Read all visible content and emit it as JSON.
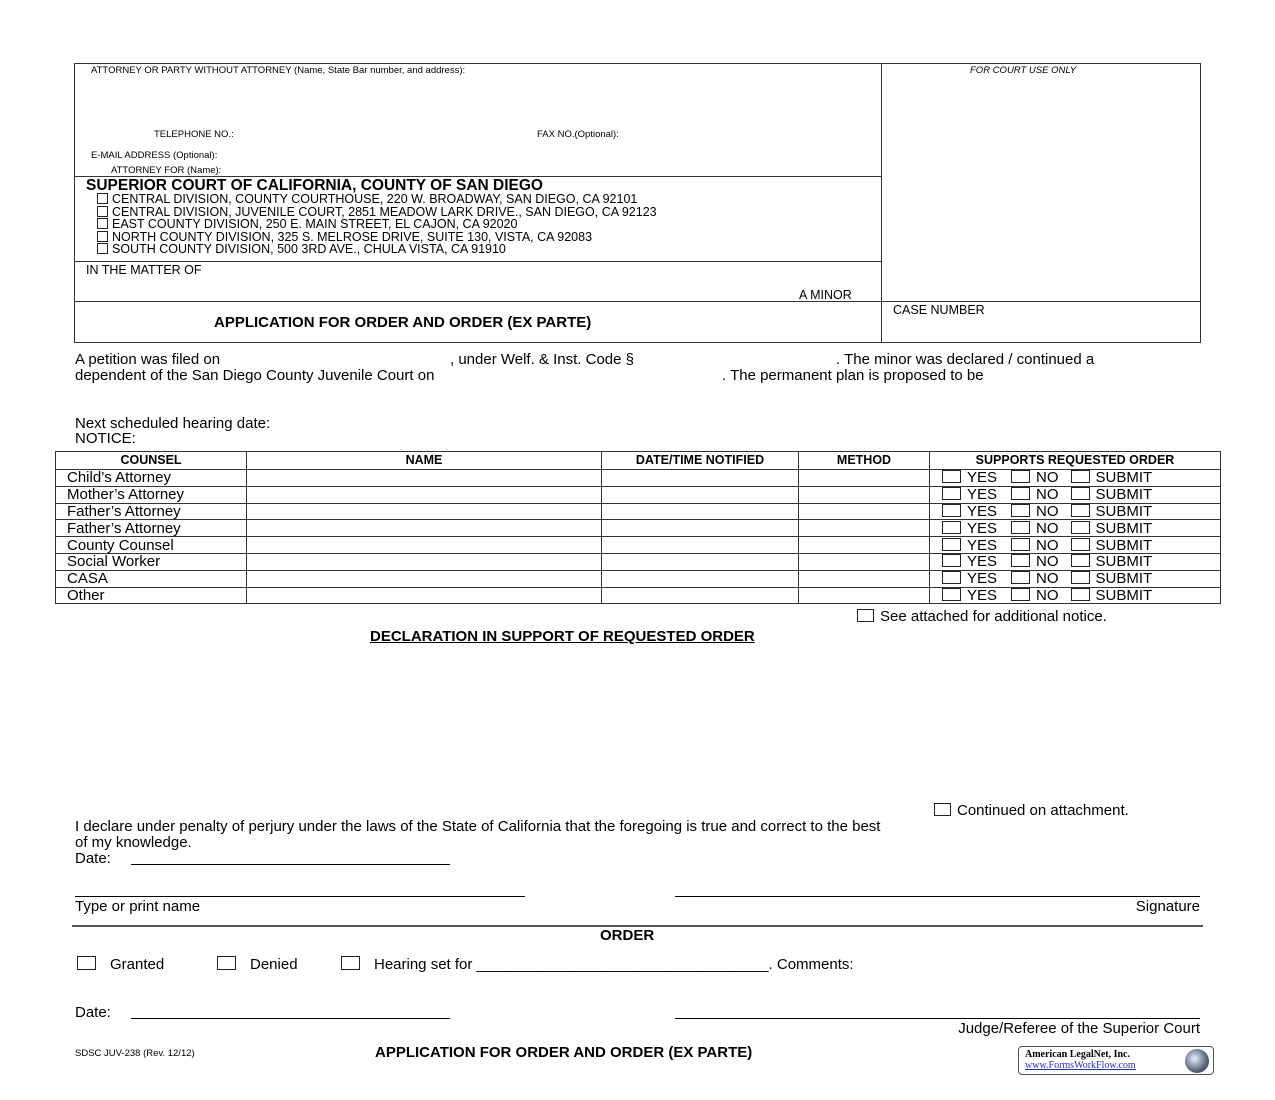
{
  "header": {
    "attorney_label": "ATTORNEY OR PARTY WITHOUT ATTORNEY (Name, State Bar number, and address):",
    "telephone_label": "TELEPHONE NO.:",
    "fax_label": "FAX NO.(Optional):",
    "email_label": "E-MAIL ADDRESS (Optional):",
    "attorney_for_label": "ATTORNEY FOR (Name):",
    "court_use_label": "FOR COURT USE ONLY",
    "court_name": "SUPERIOR COURT OF CALIFORNIA, COUNTY OF SAN DIEGO",
    "divisions": [
      "CENTRAL DIVISION, COUNTY COURTHOUSE, 220 W. BROADWAY, SAN DIEGO, CA 92101",
      "CENTRAL DIVISION, JUVENILE COURT, 2851 MEADOW LARK DRIVE., SAN DIEGO, CA 92123",
      "EAST COUNTY DIVISION, 250 E. MAIN STREET, EL CAJON, CA 92020",
      "NORTH COUNTY DIVISION, 325 S. MELROSE DRIVE, SUITE 130, VISTA, CA 92083",
      "SOUTH COUNTY DIVISION, 500 3RD AVE., CHULA VISTA, CA 91910"
    ],
    "matter_label": "IN THE MATTER OF",
    "minor_label": "A MINOR",
    "title": "APPLICATION FOR ORDER AND ORDER (EX PARTE)",
    "case_number_label": "CASE NUMBER"
  },
  "body": {
    "petition_1": "A petition was filed on",
    "petition_2": ", under Welf. & Inst. Code §",
    "petition_3": ".  The minor was declared / continued a",
    "petition_4": "dependent of the San Diego County Juvenile Court on",
    "petition_5": ".  The permanent plan is proposed to be",
    "next_hearing": "Next scheduled hearing date:",
    "notice": "NOTICE:"
  },
  "notice_table": {
    "headers": [
      "COUNSEL",
      "NAME",
      "DATE/TIME NOTIFIED",
      "METHOD",
      "SUPPORTS REQUESTED ORDER"
    ],
    "rows": [
      "Child’s Attorney",
      "Mother’s Attorney",
      "Father’s Attorney",
      "Father’s Attorney",
      "County Counsel",
      "Social Worker",
      "CASA",
      "Other"
    ],
    "options": [
      "YES",
      "NO",
      "SUBMIT"
    ]
  },
  "see_attached": "See attached for additional notice.",
  "declaration_title": "DECLARATION IN SUPPORT OF REQUESTED ORDER",
  "continued": "Continued on attachment.",
  "declare_1": "I declare under penalty of perjury under the laws of the State of California that the foregoing is true and correct to the best",
  "declare_2": "of my knowledge.",
  "date_label": "Date:",
  "type_name": "Type or print name",
  "signature": "Signature",
  "order": {
    "title": "ORDER",
    "granted": "Granted",
    "denied": "Denied",
    "hearing": "Hearing set for ___________________________________. Comments:",
    "date_label": "Date:",
    "judge": "Judge/Referee of the Superior Court"
  },
  "footer": {
    "form_id": "SDSC JUV-238 (Rev. 12/12)",
    "title": "APPLICATION FOR ORDER AND ORDER (EX PARTE)",
    "logo_name": "American LegalNet, Inc.",
    "logo_url": "www.FormsWorkFlow.com"
  }
}
